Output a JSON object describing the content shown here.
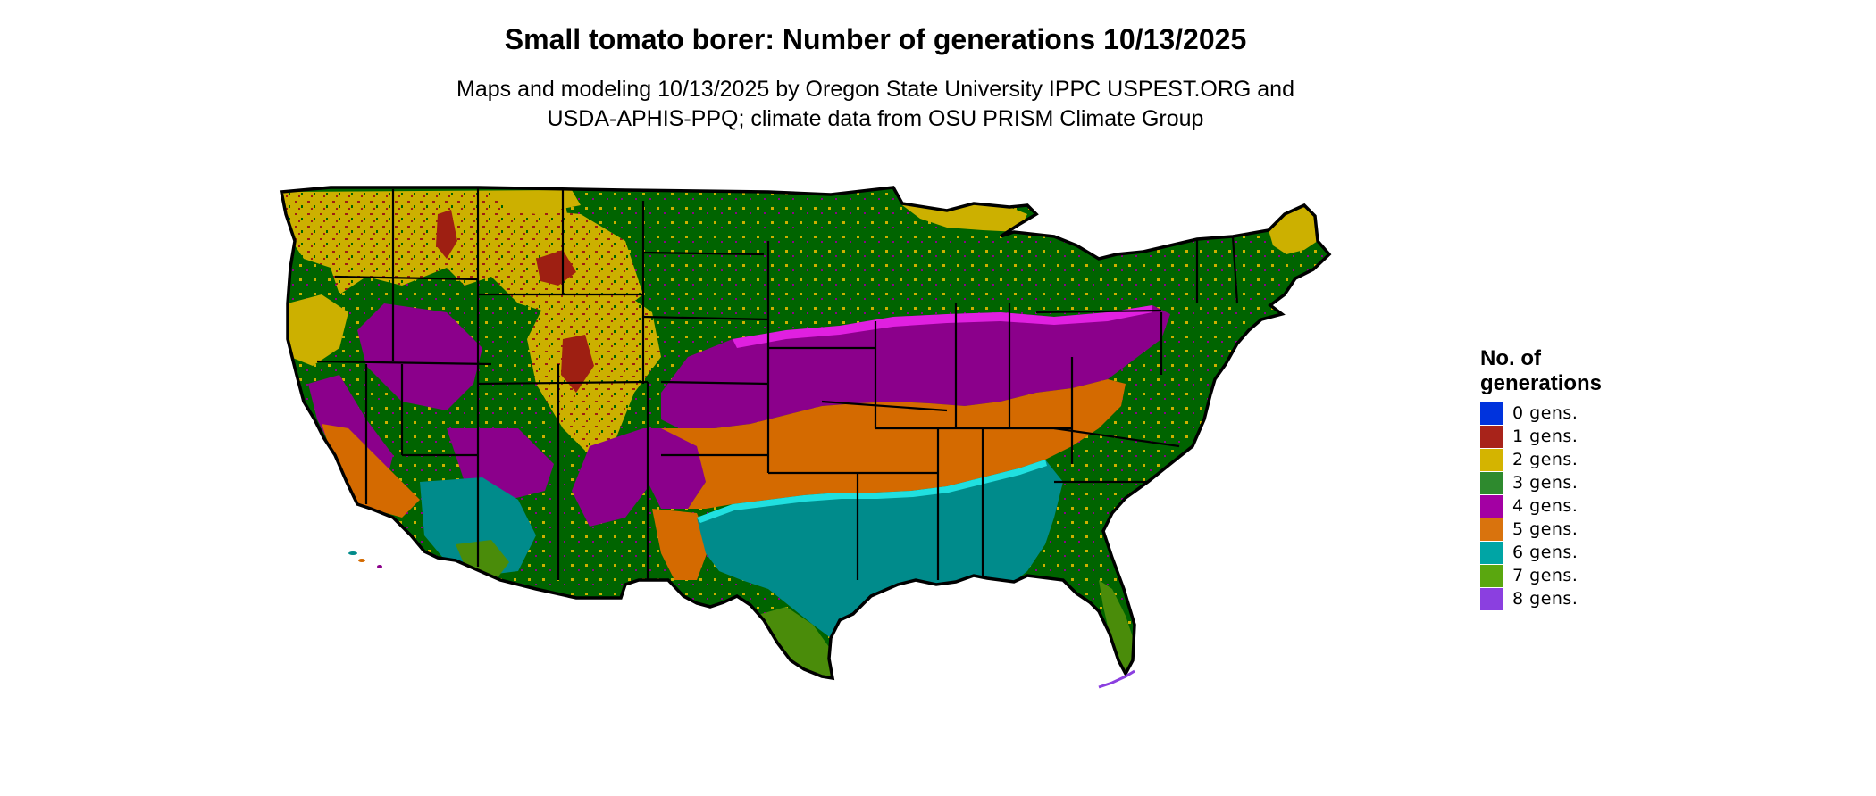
{
  "title": "Small tomato borer: Number of generations 10/13/2025",
  "subtitle": {
    "line1": "Maps and modeling 10/13/2025 by Oregon State University IPPC USPEST.ORG and",
    "line2": "USDA-APHIS-PPQ; climate data from OSU PRISM Climate Group"
  },
  "legend": {
    "title_line1": "No. of",
    "title_line2": "generations",
    "items": [
      {
        "label": "0 gens.",
        "color": "#0033dd"
      },
      {
        "label": "1 gens.",
        "color": "#a8231a"
      },
      {
        "label": "2 gens.",
        "color": "#d4b400"
      },
      {
        "label": "3 gens.",
        "color": "#2e8a2e"
      },
      {
        "label": "4 gens.",
        "color": "#a300a3"
      },
      {
        "label": "5 gens.",
        "color": "#d9730d"
      },
      {
        "label": "6 gens.",
        "color": "#00a5a5"
      },
      {
        "label": "7 gens.",
        "color": "#5aa70f"
      },
      {
        "label": "8 gens.",
        "color": "#8b3fe0"
      }
    ]
  },
  "map": {
    "region": "Contiguous United States",
    "colors": {
      "one_gen": "#9e1f12",
      "two_gen": "#ccb000",
      "three_gen": "#006400",
      "four_gen": "#8b008b",
      "four_gen_edge": "#e020e0",
      "five_gen": "#d46a00",
      "six_gen": "#008b8b",
      "six_gen_edge": "#20e0e0",
      "seven_gen": "#4a8c0a",
      "eight_gen": "#8b3fe0",
      "border": "#000000"
    }
  }
}
